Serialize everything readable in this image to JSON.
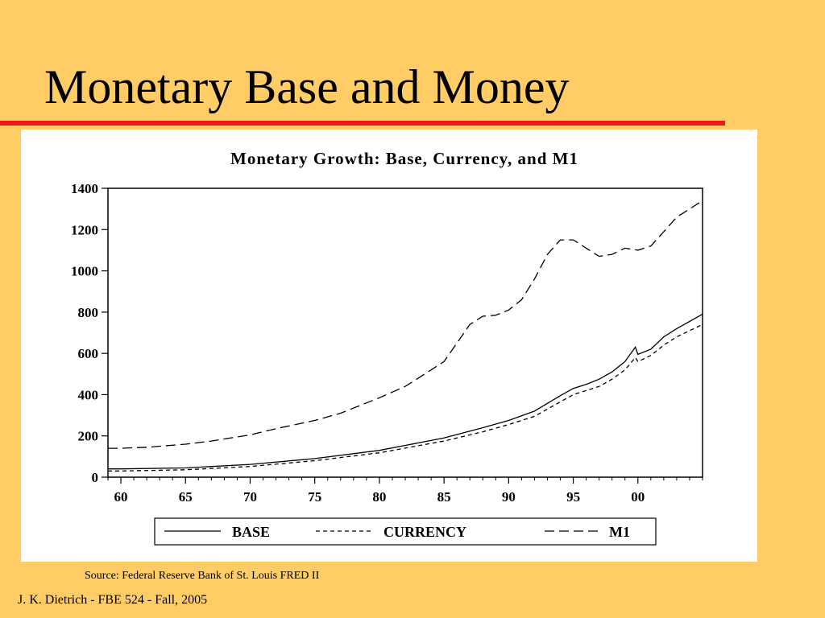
{
  "slide": {
    "title": "Monetary Base and Money",
    "source": "Source: Federal Reserve Bank of St. Louis FRED II",
    "footer": "J. K. Dietrich - FBE 524 - Fall, 2005"
  },
  "colors": {
    "background": "#FFCC66",
    "title_rule": "#E81A1A",
    "panel": "#FFFFFF",
    "lines": "#000000"
  },
  "chart_data": {
    "type": "line",
    "title": "Monetary Growth: Base, Currency, and M1",
    "xlabel": "",
    "ylabel": "",
    "xlim": [
      1959,
      2005
    ],
    "ylim": [
      0,
      1400
    ],
    "xticks": [
      1960,
      1965,
      1970,
      1975,
      1980,
      1985,
      1990,
      1995,
      2000
    ],
    "xtick_labels": [
      "60",
      "65",
      "70",
      "75",
      "80",
      "85",
      "90",
      "95",
      "00"
    ],
    "yticks": [
      0,
      200,
      400,
      600,
      800,
      1000,
      1200,
      1400
    ],
    "ytick_labels": [
      "0",
      "200",
      "400",
      "600",
      "800",
      "1000",
      "1200",
      "1400"
    ],
    "legend_position": "bottom",
    "series": [
      {
        "name": "BASE",
        "style": "solid",
        "x": [
          1959,
          1960,
          1965,
          1970,
          1975,
          1980,
          1985,
          1988,
          1990,
          1992,
          1994,
          1995,
          1996,
          1997,
          1998,
          1999,
          1999.8,
          2000,
          2001,
          2002,
          2003,
          2004,
          2005
        ],
        "y": [
          40,
          40,
          45,
          62,
          90,
          130,
          190,
          240,
          275,
          320,
          395,
          430,
          450,
          475,
          510,
          560,
          630,
          595,
          620,
          680,
          720,
          755,
          790
        ]
      },
      {
        "name": "CURRENCY",
        "style": "short-dash",
        "x": [
          1959,
          1960,
          1965,
          1970,
          1975,
          1980,
          1985,
          1988,
          1990,
          1992,
          1994,
          1995,
          1996,
          1997,
          1998,
          1999,
          1999.8,
          2000,
          2001,
          2002,
          2003,
          2004,
          2005
        ],
        "y": [
          30,
          30,
          36,
          52,
          80,
          118,
          175,
          220,
          255,
          295,
          365,
          400,
          420,
          440,
          475,
          520,
          580,
          560,
          590,
          640,
          680,
          710,
          740
        ]
      },
      {
        "name": "M1",
        "style": "long-dash",
        "x": [
          1959,
          1960,
          1962,
          1965,
          1967,
          1970,
          1972,
          1975,
          1977,
          1980,
          1982,
          1984,
          1985,
          1986,
          1987,
          1988,
          1989,
          1990,
          1991,
          1992,
          1993,
          1994,
          1995,
          1996,
          1997,
          1998,
          1999,
          2000,
          2001,
          2002,
          2003,
          2004,
          2005
        ],
        "y": [
          140,
          140,
          145,
          160,
          175,
          205,
          235,
          275,
          310,
          385,
          440,
          520,
          560,
          650,
          740,
          780,
          785,
          810,
          860,
          960,
          1080,
          1150,
          1150,
          1110,
          1070,
          1080,
          1110,
          1100,
          1120,
          1190,
          1260,
          1300,
          1340
        ]
      }
    ]
  }
}
